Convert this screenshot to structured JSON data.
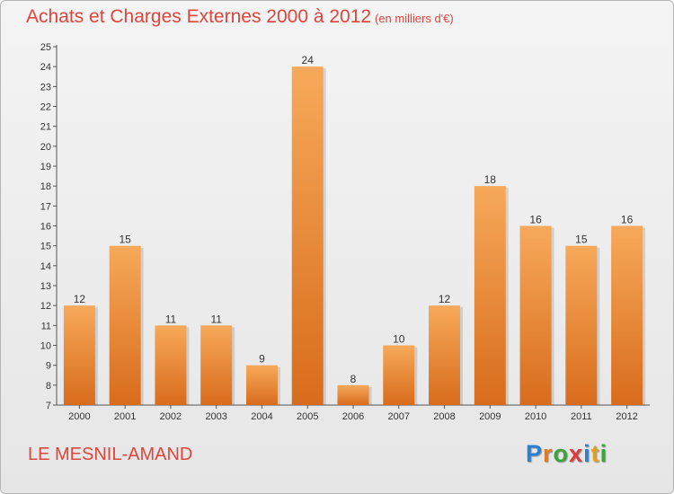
{
  "header": {
    "title": "Achats et Charges Externes 2000 à 2012",
    "subtitle": "(en milliers d'€)"
  },
  "footer": {
    "commune": "LE MESNIL-AMAND",
    "logo_letters": [
      {
        "ch": "P",
        "color": "#2f7fd0"
      },
      {
        "ch": "r",
        "color": "#e07b24"
      },
      {
        "ch": "o",
        "color": "#3aa63a"
      },
      {
        "ch": "x",
        "color": "#e03a3a"
      },
      {
        "ch": "i",
        "color": "#2f7fd0"
      },
      {
        "ch": "t",
        "color": "#e0a024"
      },
      {
        "ch": "i",
        "color": "#3aa63a"
      }
    ]
  },
  "colors": {
    "bar_light": "#f7a95a",
    "bar_dark": "#d86c1c",
    "title": "#e0453b"
  },
  "chart_data": {
    "type": "bar",
    "title": "Achats et Charges Externes 2000 à 2012",
    "subtitle": "(en milliers d'€)",
    "categories": [
      "2000",
      "2001",
      "2002",
      "2003",
      "2004",
      "2005",
      "2006",
      "2007",
      "2008",
      "2009",
      "2010",
      "2011",
      "2012"
    ],
    "values": [
      12,
      15,
      11,
      11,
      9,
      24,
      8,
      10,
      12,
      18,
      16,
      15,
      16
    ],
    "ylim": [
      7,
      25
    ],
    "yticks": [
      7,
      8,
      9,
      10,
      11,
      12,
      13,
      14,
      15,
      16,
      17,
      18,
      19,
      20,
      21,
      22,
      23,
      24,
      25
    ],
    "grid": false,
    "legend": "none"
  }
}
